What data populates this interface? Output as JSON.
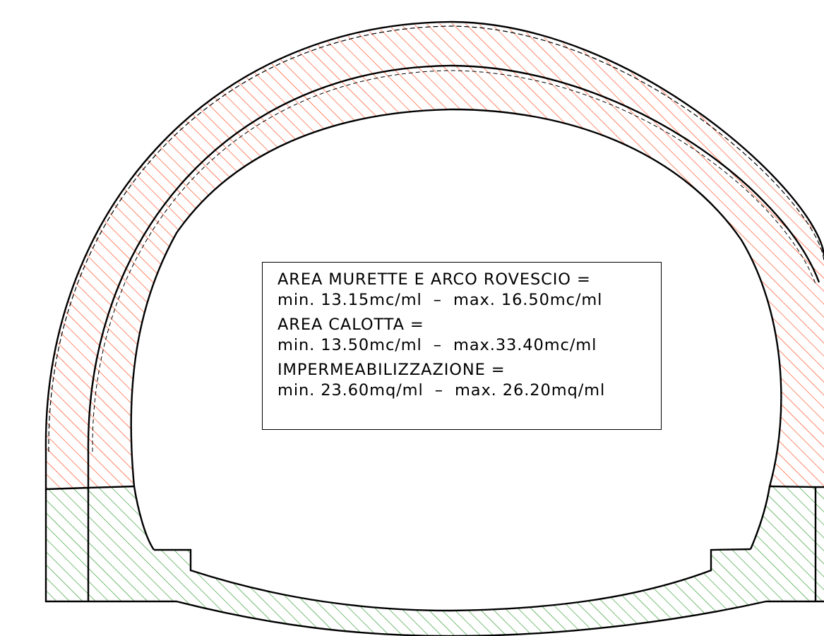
{
  "legend": {
    "murette_title": "AREA MURETTE E ARCO ROVESCIO =",
    "murette_values": "min. 13.15mc/ml  –  max. 16.50mc/ml",
    "calotta_title": "AREA CALOTTA =",
    "calotta_values": "min. 13.50mc/ml  –  max.33.40mc/ml",
    "imperm_title": "IMPERMEABILIZZAZIONE =",
    "imperm_values": "min. 23.60mq/ml  –  max. 26.20mq/ml"
  },
  "colors": {
    "calotta_hatch": "#ff4a1a",
    "murette_hatch": "#2e9a2e",
    "outline": "#000000",
    "background": "#ffffff"
  }
}
